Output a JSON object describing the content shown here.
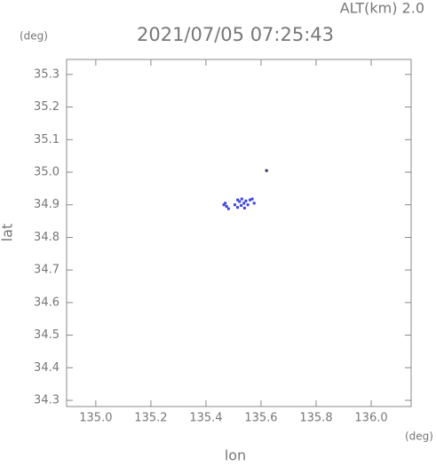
{
  "chart_data": {
    "type": "scatter",
    "title": "2021/07/05 07:25:43",
    "annotation": "ALT(km) 2.0",
    "x_label": "lon",
    "y_label": "lat",
    "x_unit": "(deg)",
    "y_unit": "(deg)",
    "xlim": [
      134.894,
      136.145
    ],
    "ylim": [
      34.281,
      35.346
    ],
    "xticks": [
      {
        "value": 135,
        "label": "135.0"
      },
      135.2,
      135.4,
      135.6,
      135.8,
      {
        "value": 136,
        "label": "136.0"
      }
    ],
    "yticks": [
      34.3,
      34.4,
      34.5,
      34.6,
      34.7,
      34.8,
      34.9,
      {
        "value": 35,
        "label": "35.0"
      },
      35.1,
      35.2,
      35.3
    ],
    "series": [
      {
        "color": "#3a44e0",
        "x": [
          135.465,
          135.475,
          135.482,
          135.47,
          135.505,
          135.515,
          135.522,
          135.53,
          135.538,
          135.528,
          135.545,
          135.552,
          135.56,
          135.568,
          135.575,
          135.515,
          135.54
        ],
        "y": [
          34.9,
          34.895,
          34.888,
          34.905,
          34.9,
          34.915,
          34.91,
          34.918,
          34.905,
          34.898,
          34.912,
          34.9,
          34.915,
          34.918,
          34.905,
          34.892,
          34.89
        ]
      },
      {
        "color": "#333366",
        "x": [
          135.62
        ],
        "y": [
          35.005
        ]
      }
    ]
  }
}
